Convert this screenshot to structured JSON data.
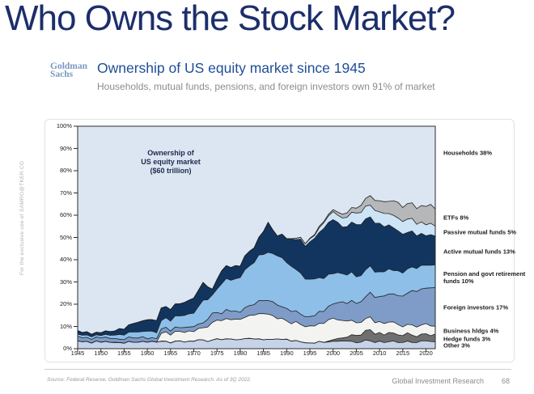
{
  "page": {
    "title": "Who Owns the Stock Market?"
  },
  "watermark": "For the exclusive use of SAMRO@TKER.CO",
  "header": {
    "logo_line1": "Goldman",
    "logo_line2": "Sachs",
    "heading": "Ownership of US equity market since 1945",
    "subheading": "Households, mutual funds, pensions, and foreign investors own 91% of market"
  },
  "chart_data": {
    "type": "area",
    "stacked": true,
    "annotation_lines": [
      "Ownership of",
      "US equity market",
      "($60 trillion)"
    ],
    "xlim": [
      1945,
      2022
    ],
    "ylim": [
      0,
      100
    ],
    "x_ticks": [
      1945,
      1950,
      1955,
      1960,
      1965,
      1970,
      1975,
      1980,
      1985,
      1990,
      1995,
      2000,
      2005,
      2010,
      2015,
      2020
    ],
    "y_ticks": [
      "0%",
      "10%",
      "20%",
      "30%",
      "40%",
      "50%",
      "60%",
      "70%",
      "80%",
      "90%",
      "100%"
    ],
    "plot_border_color": "#2b2b2b",
    "line_color": "#1f1f1f",
    "background_series": {
      "name": "Households",
      "label": "Households 38%",
      "color": "#dce6f2",
      "label_level": 88
    },
    "x": [
      1945,
      1948,
      1950,
      1952,
      1955,
      1958,
      1960,
      1962,
      1963,
      1965,
      1968,
      1970,
      1972,
      1974,
      1976,
      1978,
      1980,
      1982,
      1984,
      1986,
      1988,
      1990,
      1992,
      1994,
      1996,
      1998,
      2000,
      2002,
      2004,
      2006,
      2008,
      2010,
      2012,
      2014,
      2016,
      2018,
      2020,
      2022
    ],
    "series": [
      {
        "name": "Other",
        "label": "Other 3%",
        "color": "#c6d3e9",
        "values": [
          3,
          3,
          3,
          3,
          3,
          3,
          3,
          3,
          3,
          3,
          3.3,
          3.5,
          3.5,
          3.8,
          4,
          4.2,
          4.5,
          4.5,
          4.5,
          4.5,
          4,
          3.8,
          3.5,
          3.2,
          3,
          3,
          3,
          3,
          3.2,
          3.2,
          3.5,
          3.2,
          3,
          3,
          3,
          3,
          3,
          3
        ]
      },
      {
        "name": "Hedge funds",
        "label": "Hedge funds 3%",
        "color": "#6f6f6f",
        "values": [
          0,
          0,
          0,
          0,
          0,
          0,
          0,
          0,
          0,
          0,
          0,
          0,
          0,
          0,
          0,
          0,
          0,
          0,
          0,
          0,
          0,
          0,
          0,
          0,
          0,
          0,
          0.8,
          1.5,
          2.5,
          3.5,
          4.5,
          4,
          3.8,
          3.5,
          3.3,
          3.2,
          3,
          3
        ]
      },
      {
        "name": "Business hldgs",
        "label": "Business hldgs 4%",
        "color": "#f3f4f2",
        "values": [
          0,
          0,
          0,
          0,
          0,
          0,
          0,
          0,
          3.5,
          4,
          4.2,
          4.5,
          5,
          8.5,
          8.5,
          9,
          9,
          10,
          11.5,
          11.5,
          9.5,
          8.5,
          8,
          7.5,
          8,
          9,
          9.5,
          7.5,
          6.5,
          6,
          5.5,
          5,
          4.8,
          4.5,
          4.2,
          4,
          4,
          4
        ]
      },
      {
        "name": "Foreign investors",
        "label": "Foreign investors 17%",
        "color": "#7e9cc7",
        "values": [
          2,
          2,
          1.8,
          1.8,
          1.8,
          1.8,
          1.8,
          1.8,
          1.8,
          1.8,
          2,
          2.2,
          2.5,
          4.5,
          3.5,
          3.5,
          3.5,
          4.5,
          5.5,
          6,
          6,
          5.5,
          4.5,
          4.5,
          5,
          6,
          7,
          8,
          8.5,
          9.5,
          10.5,
          11.5,
          12.5,
          13.5,
          14.5,
          15.5,
          16,
          17
        ]
      },
      {
        "name": "Pension and govt retirement funds",
        "label": "Pension and govt retirement funds 10%",
        "color": "#8dbfe8",
        "values": [
          1,
          1,
          1.2,
          1.5,
          2,
          2.5,
          3,
          3.2,
          3.5,
          4.2,
          5,
          6.5,
          10,
          8,
          13,
          14.5,
          15.5,
          17.5,
          20,
          22,
          22,
          21,
          19,
          17.5,
          16.5,
          15,
          13.5,
          13,
          12.5,
          12,
          11.5,
          11.5,
          11,
          11,
          10.5,
          10.5,
          10,
          10
        ]
      },
      {
        "name": "Active mutual funds",
        "label": "Active mutual funds 13%",
        "color": "#12355f",
        "values": [
          1.5,
          1.3,
          1.5,
          2,
          3,
          4,
          4.7,
          5,
          5.2,
          5.5,
          6,
          6.3,
          8,
          3,
          6,
          5.8,
          5.5,
          6,
          8,
          13,
          9.5,
          11.2,
          14,
          15.3,
          18.5,
          22,
          24,
          21,
          23,
          23,
          22,
          21.5,
          20,
          18.5,
          16.5,
          15,
          13.5,
          13
        ]
      },
      {
        "name": "Passive mutual funds",
        "label": "Passive mutual funds 5%",
        "color": "#cde3f6",
        "values": [
          0,
          0,
          0,
          0,
          0,
          0,
          0,
          0,
          0,
          0,
          0,
          0,
          0,
          0,
          0,
          0,
          0,
          0,
          0,
          0,
          0,
          0,
          0.5,
          1,
          1.5,
          2.5,
          3.5,
          4,
          4.5,
          5,
          5.5,
          5.5,
          5.5,
          5.8,
          5.8,
          5.5,
          5,
          5
        ]
      },
      {
        "name": "ETFs",
        "label": "ETFs 8%",
        "color": "#b5b7b9",
        "values": [
          0,
          0,
          0,
          0,
          0,
          0,
          0,
          0,
          0,
          0,
          0,
          0,
          0,
          0,
          0,
          0,
          0,
          0,
          0,
          0,
          0,
          0,
          0,
          0,
          0.5,
          0.7,
          1,
          1.5,
          2,
          2.8,
          4,
          5.5,
          6,
          6.5,
          7,
          7.5,
          7.8,
          8
        ]
      }
    ]
  },
  "footer": {
    "source": "Source: Federal Reserve, Goldman Sachs Global Investment Research. As of 3Q 2022.",
    "division": "Global Investment Research",
    "page_number": "68"
  }
}
